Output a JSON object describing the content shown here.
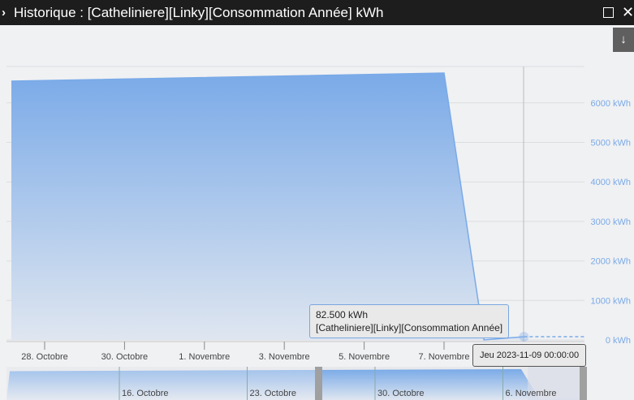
{
  "window": {
    "title": "Historique : [Catheliniere][Linky][Consommation Année] kWh",
    "expand_icon": "chevron-right-icon",
    "maximize_icon": "square-icon",
    "close_icon": "close-icon",
    "download_icon": "arrow-down-icon"
  },
  "tooltip": {
    "value": "82.500 kWh",
    "series": "[Catheliniere][Linky][Consommation Année]",
    "date": "Jeu 2023-11-09 00:00:00"
  },
  "chart_data": {
    "type": "area",
    "color": "#7aaae8",
    "yunit": "kWh",
    "ylim": [
      0,
      6500
    ],
    "yticks": [
      {
        "v": 0,
        "label": "0 kWh"
      },
      {
        "v": 1000,
        "label": "1000 kWh"
      },
      {
        "v": 2000,
        "label": "2000 kWh"
      },
      {
        "v": 3000,
        "label": "3000 kWh"
      },
      {
        "v": 4000,
        "label": "4000 kWh"
      },
      {
        "v": 5000,
        "label": "5000 kWh"
      },
      {
        "v": 6000,
        "label": "6000 kWh"
      }
    ],
    "xticks": [
      {
        "d": "2023-10-28",
        "label": "28. Octobre"
      },
      {
        "d": "2023-10-30",
        "label": "30. Octobre"
      },
      {
        "d": "2023-11-01",
        "label": "1. Novembre"
      },
      {
        "d": "2023-11-03",
        "label": "3. Novembre"
      },
      {
        "d": "2023-11-05",
        "label": "5. Novembre"
      },
      {
        "d": "2023-11-07",
        "label": "7. Novembre"
      }
    ],
    "points": [
      [
        "2023-10-27",
        6550
      ],
      [
        "2023-11-07",
        6755
      ],
      [
        "2023-11-08",
        0
      ],
      [
        "2023-11-09",
        82.5
      ]
    ],
    "navigator": {
      "xticks": [
        {
          "d": "2023-10-16",
          "label": "16. Octobre"
        },
        {
          "d": "2023-10-23",
          "label": "23. Octobre"
        },
        {
          "d": "2023-10-30",
          "label": "30. Octobre"
        },
        {
          "d": "2023-11-06",
          "label": "6. Novembre"
        }
      ],
      "points": [
        [
          "2023-10-10",
          6300
        ],
        [
          "2023-11-07",
          6755
        ],
        [
          "2023-11-08",
          0
        ],
        [
          "2023-11-09",
          82.5
        ]
      ]
    }
  }
}
